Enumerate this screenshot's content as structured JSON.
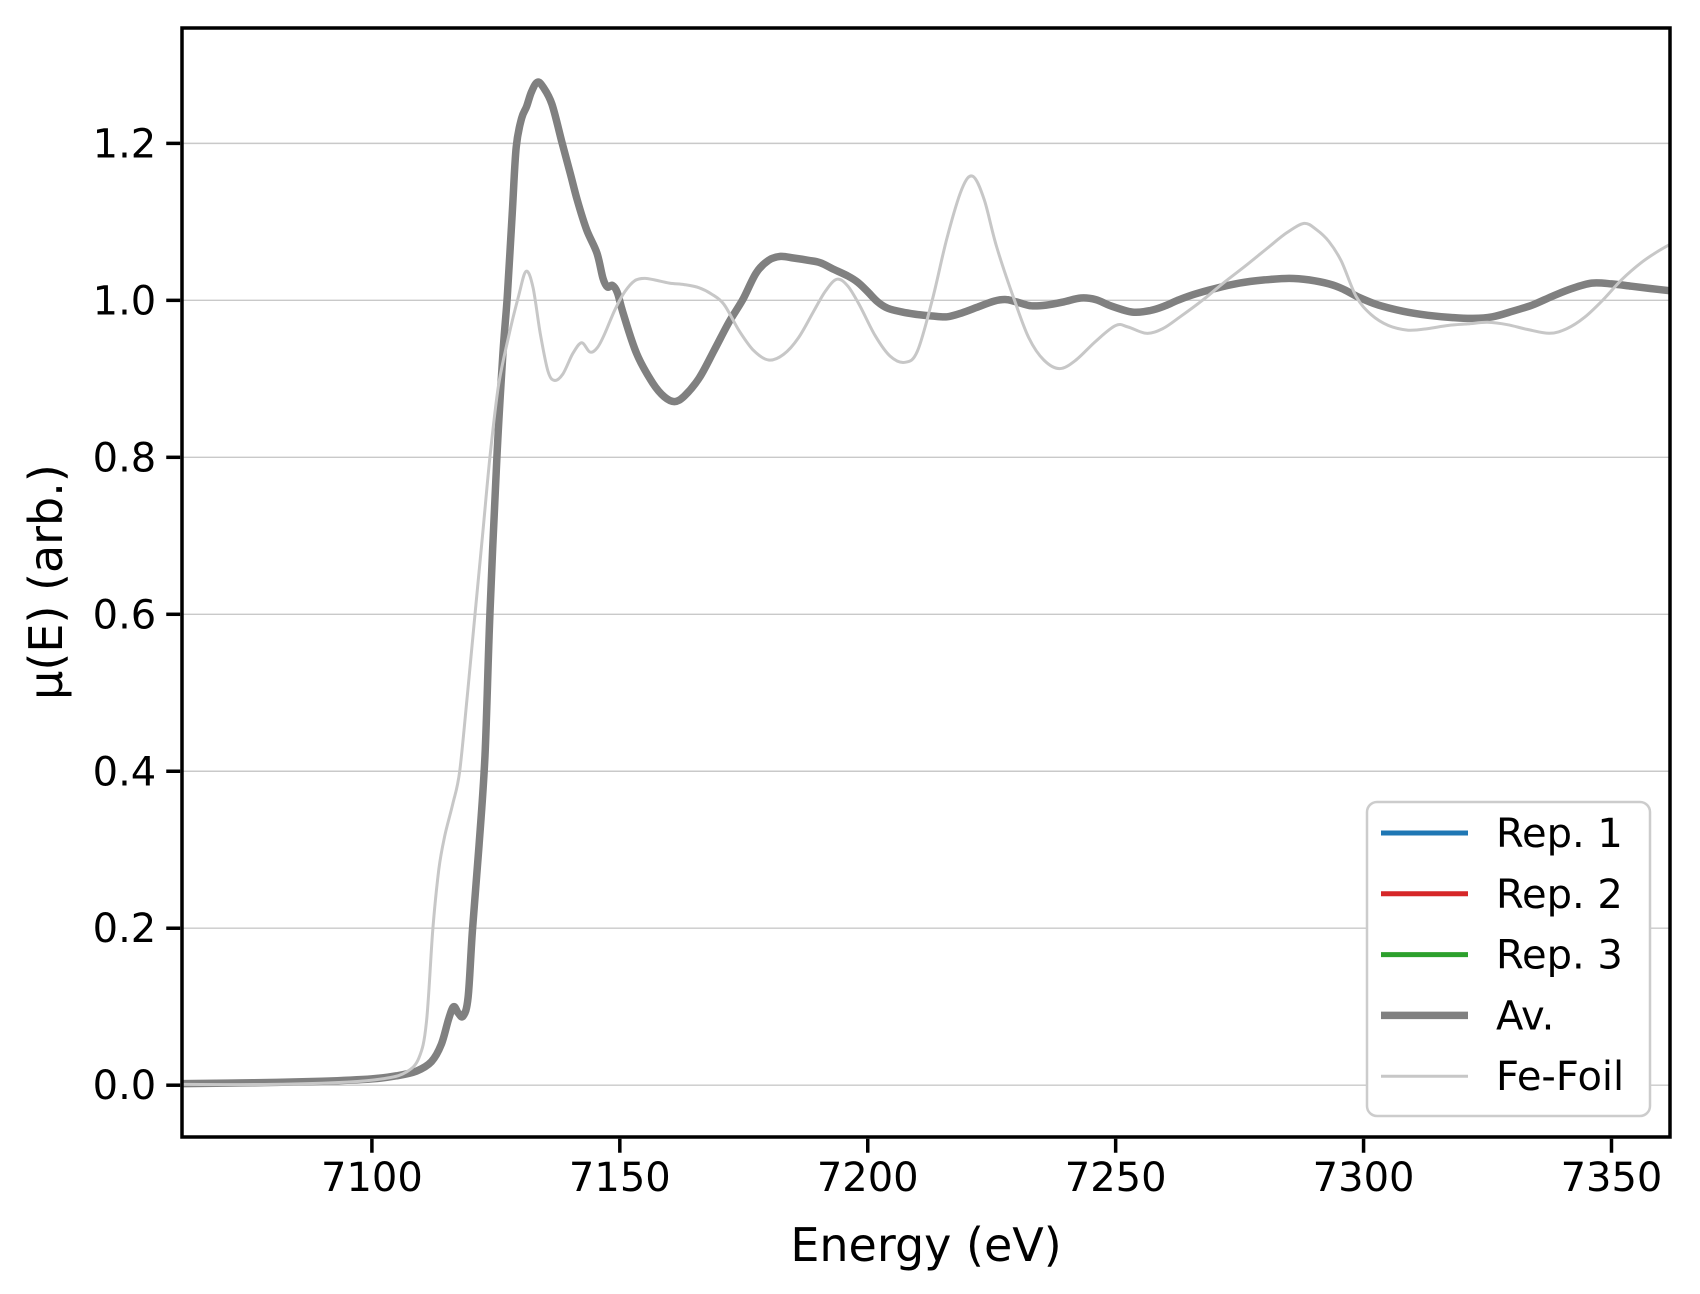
{
  "figure": {
    "background": "#ffffff",
    "text_color": "#000000",
    "spine_color": "#000000"
  },
  "chart_data": {
    "type": "line",
    "title": "",
    "xlabel": "Energy (eV)",
    "ylabel": "μ(E) (arb.)",
    "xlim": [
      7061.7,
      7361.8
    ],
    "ylim": [
      -0.066,
      1.347
    ],
    "x_ticks": [
      7100,
      7150,
      7200,
      7250,
      7300,
      7350
    ],
    "x_tick_labels": [
      "7100",
      "7150",
      "7200",
      "7250",
      "7300",
      "7350"
    ],
    "y_ticks": [
      0.0,
      0.2,
      0.4,
      0.6,
      0.8,
      1.0,
      1.2
    ],
    "y_tick_labels": [
      "0.0",
      "0.2",
      "0.4",
      "0.6",
      "0.8",
      "1.0",
      "1.2"
    ],
    "grid": {
      "axis": "y",
      "color": "#c9c9c9",
      "linewidth": 1.4
    },
    "legend": {
      "location": "lower right",
      "border_color": "#cccccc",
      "background": "#ffffff",
      "text_color": "#000000"
    },
    "series": [
      {
        "name": "Rep. 1",
        "color": "#1f77b4",
        "linewidth": 5,
        "points_same_as": "Av.",
        "note": "hidden beneath Av. curve"
      },
      {
        "name": "Rep. 2",
        "color": "#d62728",
        "linewidth": 5,
        "points_same_as": "Av.",
        "note": "hidden beneath Av. curve"
      },
      {
        "name": "Rep. 3",
        "color": "#2ca02c",
        "linewidth": 5,
        "points_same_as": "Av.",
        "note": "hidden beneath Av. curve"
      },
      {
        "name": "Av.",
        "color": "#808080",
        "linewidth": 7.5,
        "points": [
          [
            7062,
            0.002
          ],
          [
            7076,
            0.003
          ],
          [
            7090,
            0.005
          ],
          [
            7100,
            0.008
          ],
          [
            7105,
            0.012
          ],
          [
            7109,
            0.018
          ],
          [
            7112,
            0.03
          ],
          [
            7114,
            0.052
          ],
          [
            7115.5,
            0.085
          ],
          [
            7116.5,
            0.1
          ],
          [
            7117.4,
            0.092
          ],
          [
            7118.4,
            0.088
          ],
          [
            7119.4,
            0.112
          ],
          [
            7120.3,
            0.2
          ],
          [
            7121.6,
            0.305
          ],
          [
            7122.8,
            0.42
          ],
          [
            7123.8,
            0.6
          ],
          [
            7125.2,
            0.8
          ],
          [
            7126.4,
            0.93
          ],
          [
            7127.3,
            1.005
          ],
          [
            7128.3,
            1.11
          ],
          [
            7129.1,
            1.195
          ],
          [
            7130.2,
            1.232
          ],
          [
            7131.2,
            1.247
          ],
          [
            7132.2,
            1.266
          ],
          [
            7133.4,
            1.278
          ],
          [
            7134.6,
            1.271
          ],
          [
            7136.3,
            1.25
          ],
          [
            7138.3,
            1.202
          ],
          [
            7140.0,
            1.162
          ],
          [
            7141.4,
            1.128
          ],
          [
            7143.3,
            1.09
          ],
          [
            7145.4,
            1.06
          ],
          [
            7146.6,
            1.028
          ],
          [
            7147.5,
            1.017
          ],
          [
            7148.5,
            1.019
          ],
          [
            7149.5,
            1.01
          ],
          [
            7150.6,
            0.985
          ],
          [
            7153.4,
            0.932
          ],
          [
            7156.7,
            0.894
          ],
          [
            7159.0,
            0.877
          ],
          [
            7161.0,
            0.871
          ],
          [
            7163.0,
            0.878
          ],
          [
            7166.0,
            0.901
          ],
          [
            7169.0,
            0.936
          ],
          [
            7172.0,
            0.972
          ],
          [
            7174.8,
            1.001
          ],
          [
            7177.5,
            1.035
          ],
          [
            7180.0,
            1.051
          ],
          [
            7182.4,
            1.056
          ],
          [
            7185.0,
            1.054
          ],
          [
            7188.0,
            1.051
          ],
          [
            7190.4,
            1.048
          ],
          [
            7193.0,
            1.04
          ],
          [
            7196.0,
            1.031
          ],
          [
            7198.0,
            1.023
          ],
          [
            7200.0,
            1.011
          ],
          [
            7202.0,
            0.998
          ],
          [
            7204.0,
            0.99
          ],
          [
            7207.0,
            0.985
          ],
          [
            7210.0,
            0.982
          ],
          [
            7213.0,
            0.98
          ],
          [
            7216.0,
            0.979
          ],
          [
            7219.0,
            0.984
          ],
          [
            7222.0,
            0.991
          ],
          [
            7225.5,
            0.999
          ],
          [
            7228.0,
            1.001
          ],
          [
            7230.5,
            0.997
          ],
          [
            7233.0,
            0.993
          ],
          [
            7236.0,
            0.994
          ],
          [
            7239.5,
            0.998
          ],
          [
            7243.0,
            1.003
          ],
          [
            7246.0,
            1.001
          ],
          [
            7249.0,
            0.993
          ],
          [
            7253.4,
            0.985
          ],
          [
            7257.0,
            0.987
          ],
          [
            7260.0,
            0.993
          ],
          [
            7262.5,
            1.0
          ],
          [
            7266.0,
            1.008
          ],
          [
            7270.0,
            1.015
          ],
          [
            7275.0,
            1.022
          ],
          [
            7280.0,
            1.026
          ],
          [
            7285.0,
            1.028
          ],
          [
            7289.0,
            1.026
          ],
          [
            7293.0,
            1.021
          ],
          [
            7296.0,
            1.014
          ],
          [
            7299.0,
            1.004
          ],
          [
            7303.0,
            0.994
          ],
          [
            7308.0,
            0.986
          ],
          [
            7313.0,
            0.981
          ],
          [
            7318.0,
            0.978
          ],
          [
            7322.0,
            0.977
          ],
          [
            7326.0,
            0.979
          ],
          [
            7330.0,
            0.986
          ],
          [
            7334.0,
            0.994
          ],
          [
            7338.0,
            1.005
          ],
          [
            7342.0,
            1.015
          ],
          [
            7346.0,
            1.022
          ],
          [
            7350.0,
            1.021
          ],
          [
            7354.0,
            1.018
          ],
          [
            7358.0,
            1.015
          ],
          [
            7362.0,
            1.012
          ]
        ]
      },
      {
        "name": "Fe-Foil",
        "color": "#c7c7c7",
        "linewidth": 3,
        "points": [
          [
            7062,
            0.001
          ],
          [
            7080,
            0.001
          ],
          [
            7095,
            0.004
          ],
          [
            7103,
            0.009
          ],
          [
            7107,
            0.017
          ],
          [
            7109.5,
            0.035
          ],
          [
            7111,
            0.08
          ],
          [
            7112.3,
            0.2
          ],
          [
            7113.5,
            0.275
          ],
          [
            7114.7,
            0.318
          ],
          [
            7116.3,
            0.358
          ],
          [
            7117.7,
            0.4
          ],
          [
            7119.3,
            0.5
          ],
          [
            7120.8,
            0.6
          ],
          [
            7122.3,
            0.7
          ],
          [
            7123.8,
            0.8
          ],
          [
            7125.5,
            0.89
          ],
          [
            7127.5,
            0.952
          ],
          [
            7129.6,
            1.006
          ],
          [
            7131.1,
            1.037
          ],
          [
            7132.5,
            1.016
          ],
          [
            7134,
            0.956
          ],
          [
            7135.5,
            0.91
          ],
          [
            7136.8,
            0.898
          ],
          [
            7138.5,
            0.906
          ],
          [
            7140.5,
            0.932
          ],
          [
            7142.3,
            0.946
          ],
          [
            7144,
            0.934
          ],
          [
            7145.5,
            0.94
          ],
          [
            7147,
            0.958
          ],
          [
            7149,
            0.988
          ],
          [
            7151,
            1.011
          ],
          [
            7153,
            1.025
          ],
          [
            7155,
            1.028
          ],
          [
            7157,
            1.026
          ],
          [
            7160,
            1.022
          ],
          [
            7163,
            1.02
          ],
          [
            7166,
            1.016
          ],
          [
            7168.5,
            1.008
          ],
          [
            7171,
            0.995
          ],
          [
            7174,
            0.962
          ],
          [
            7177,
            0.936
          ],
          [
            7180,
            0.924
          ],
          [
            7183,
            0.931
          ],
          [
            7186,
            0.952
          ],
          [
            7189,
            0.985
          ],
          [
            7191.5,
            1.012
          ],
          [
            7193.8,
            1.027
          ],
          [
            7196,
            1.018
          ],
          [
            7198.5,
            0.992
          ],
          [
            7201.5,
            0.955
          ],
          [
            7204.5,
            0.929
          ],
          [
            7207.5,
            0.921
          ],
          [
            7210,
            0.935
          ],
          [
            7213,
            1.0
          ],
          [
            7216,
            1.08
          ],
          [
            7219,
            1.142
          ],
          [
            7221.2,
            1.158
          ],
          [
            7223.5,
            1.128
          ],
          [
            7226,
            1.068
          ],
          [
            7229.6,
            1.0
          ],
          [
            7232.5,
            0.952
          ],
          [
            7235.5,
            0.924
          ],
          [
            7238.7,
            0.913
          ],
          [
            7242,
            0.924
          ],
          [
            7246,
            0.948
          ],
          [
            7250,
            0.968
          ],
          [
            7252.5,
            0.966
          ],
          [
            7256.2,
            0.958
          ],
          [
            7259.5,
            0.964
          ],
          [
            7263,
            0.979
          ],
          [
            7267.5,
            1.0
          ],
          [
            7271.5,
            1.021
          ],
          [
            7276,
            1.043
          ],
          [
            7280.5,
            1.066
          ],
          [
            7284.5,
            1.086
          ],
          [
            7288,
            1.098
          ],
          [
            7290.5,
            1.09
          ],
          [
            7293,
            1.075
          ],
          [
            7295.5,
            1.05
          ],
          [
            7298.5,
            1.005
          ],
          [
            7301.5,
            0.982
          ],
          [
            7305,
            0.968
          ],
          [
            7309,
            0.962
          ],
          [
            7313,
            0.964
          ],
          [
            7317,
            0.968
          ],
          [
            7321,
            0.97
          ],
          [
            7325,
            0.972
          ],
          [
            7329,
            0.969
          ],
          [
            7333,
            0.963
          ],
          [
            7337.5,
            0.958
          ],
          [
            7341,
            0.964
          ],
          [
            7344.5,
            0.978
          ],
          [
            7348.2,
            1.0
          ],
          [
            7352,
            1.026
          ],
          [
            7356,
            1.048
          ],
          [
            7359.5,
            1.063
          ],
          [
            7362,
            1.072
          ]
        ]
      }
    ]
  }
}
